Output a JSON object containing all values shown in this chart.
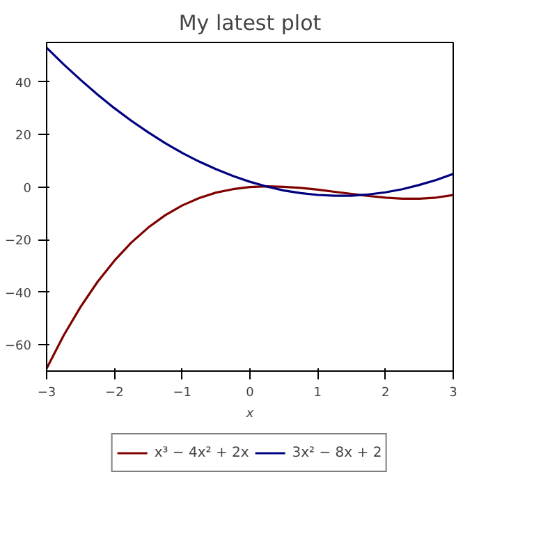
{
  "chart_data": {
    "type": "line",
    "title": "My latest plot",
    "xlabel": "x",
    "x": [
      -3,
      -2.75,
      -2.5,
      -2.25,
      -2,
      -1.75,
      -1.5,
      -1.25,
      -1,
      -0.75,
      -0.5,
      -0.25,
      0,
      0.25,
      0.5,
      0.75,
      1,
      1.25,
      1.5,
      1.75,
      2,
      2.25,
      2.5,
      2.75,
      3
    ],
    "series": [
      {
        "name": "x³ − 4x² + 2x",
        "color": "#800000",
        "values": [
          -69,
          -56.5,
          -45.6,
          -36.1,
          -28,
          -21.1,
          -15.4,
          -10.7,
          -7,
          -4.2,
          -2.1,
          -0.8,
          0,
          0.3,
          0.1,
          -0.3,
          -1,
          -1.8,
          -2.6,
          -3.4,
          -4,
          -4.4,
          -4.4,
          -4,
          -3
        ]
      },
      {
        "name": "3x² − 8x + 2",
        "color": "#000080",
        "values": [
          53,
          46.7,
          40.8,
          35.2,
          30,
          25.2,
          20.8,
          16.7,
          13,
          9.7,
          6.8,
          4.2,
          2,
          0.2,
          -1.3,
          -2.3,
          -3,
          -3.3,
          -3.3,
          -2.8,
          -2,
          -0.8,
          0.8,
          2.7,
          5
        ]
      }
    ],
    "xlim": [
      -3,
      3
    ],
    "ylim": [
      -70,
      55
    ],
    "xticks": [
      -3,
      -2,
      -1,
      0,
      1,
      2,
      3
    ],
    "yticks": [
      -60,
      -40,
      -20,
      0,
      20,
      40
    ],
    "grid": false,
    "legend": "bottom",
    "marker": "none",
    "line_style": "solid"
  }
}
